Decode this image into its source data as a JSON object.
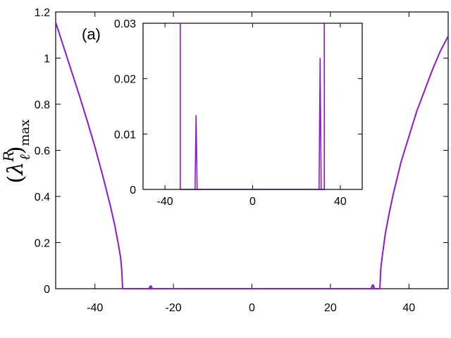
{
  "chart_data": [
    {
      "type": "line",
      "panel_label": "(a)",
      "xlabel": "",
      "ylabel": {
        "math": "(λ_ℓ^R)_max",
        "lambda": "λ",
        "ell": "ℓ",
        "sup": "R",
        "sub": "max"
      },
      "xlim": [
        -50,
        50
      ],
      "ylim": [
        0,
        1.2
      ],
      "xticks": [
        -40,
        -20,
        0,
        20,
        40
      ],
      "xtick_labels": [
        "-40",
        "-20",
        "0",
        "20",
        "40"
      ],
      "yticks": [
        0,
        0.2,
        0.4,
        0.6,
        0.8,
        1.0,
        1.2
      ],
      "ytick_labels": [
        "0",
        "0.2",
        "0.4",
        "0.6",
        "0.8",
        "1",
        "1.2"
      ],
      "grid": false,
      "color": "#8a1ccf",
      "series": [
        {
          "x": [
            -50,
            -48,
            -46,
            -44,
            -42,
            -40,
            -38,
            -36,
            -35,
            -34,
            -33.5,
            -33.2,
            -33.05,
            -32.95,
            32.6,
            32.7,
            32.85,
            33.2,
            33.6,
            34,
            35,
            36,
            38,
            40,
            42,
            44,
            46,
            48,
            50
          ],
          "y": [
            1.155,
            1.05,
            0.945,
            0.84,
            0.73,
            0.615,
            0.49,
            0.355,
            0.28,
            0.19,
            0.14,
            0.09,
            0.04,
            0.0,
            0.0,
            0.04,
            0.09,
            0.14,
            0.19,
            0.24,
            0.33,
            0.41,
            0.55,
            0.66,
            0.77,
            0.86,
            0.95,
            1.03,
            1.095
          ]
        }
      ],
      "small_peaks": [
        {
          "x": -25.8,
          "y": 0.013
        },
        {
          "x": 30.8,
          "y": 0.023
        }
      ]
    },
    {
      "type": "line",
      "title": "",
      "xlim": [
        -50,
        50
      ],
      "ylim": [
        0,
        0.03
      ],
      "xticks": [
        -40,
        0,
        40
      ],
      "xtick_labels": [
        "-40",
        "0",
        "40"
      ],
      "yticks": [
        0,
        0.01,
        0.02,
        0.03
      ],
      "ytick_labels": [
        "0",
        "0.01",
        "0.02",
        "0.03"
      ],
      "grid": false,
      "color": "#8a1ccf",
      "edges": [
        -33.0,
        32.7
      ],
      "peaks": [
        {
          "x": -25.8,
          "y": 0.0134
        },
        {
          "x": 30.8,
          "y": 0.0237
        }
      ]
    }
  ]
}
